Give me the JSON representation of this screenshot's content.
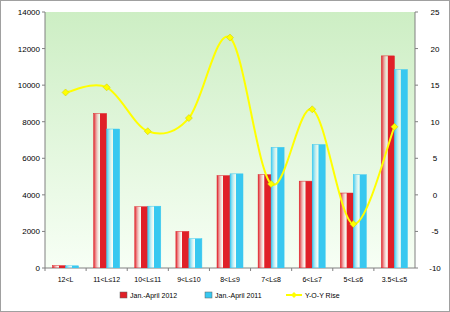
{
  "chart_data": {
    "type": "bar",
    "categories": [
      "12<L",
      "11<L≤12",
      "10<L≤11",
      "9<L≤10",
      "8<L≤9",
      "7<L≤8",
      "6<L≤7",
      "5<L≤6",
      "3.5<L≤5"
    ],
    "series": [
      {
        "name": "Jan.-April 2012",
        "color": "#e02028",
        "type": "bar",
        "values": [
          130,
          8450,
          3350,
          2000,
          5050,
          5100,
          4750,
          4100,
          11600
        ]
      },
      {
        "name": "Jan.-April 2011",
        "color": "#38c8f0",
        "type": "bar",
        "values": [
          120,
          7600,
          3380,
          1600,
          5150,
          6600,
          6750,
          5100,
          10850
        ]
      },
      {
        "name": "Y-O-Y Rise",
        "color": "#ffff00",
        "type": "line",
        "axis": "y2",
        "marker": "diamond",
        "line_style": "smooth",
        "values": [
          14,
          14.7,
          8.7,
          10.5,
          21.5,
          1.5,
          11.7,
          -4,
          9.3
        ]
      }
    ],
    "ylim": [
      0,
      14000
    ],
    "yticks": [
      0,
      2000,
      4000,
      6000,
      8000,
      10000,
      12000,
      14000
    ],
    "y2lim": [
      -10,
      25
    ],
    "y2ticks": [
      -10,
      -5,
      0,
      5,
      10,
      15,
      20,
      25
    ],
    "grid": false,
    "legend": "bottom"
  }
}
